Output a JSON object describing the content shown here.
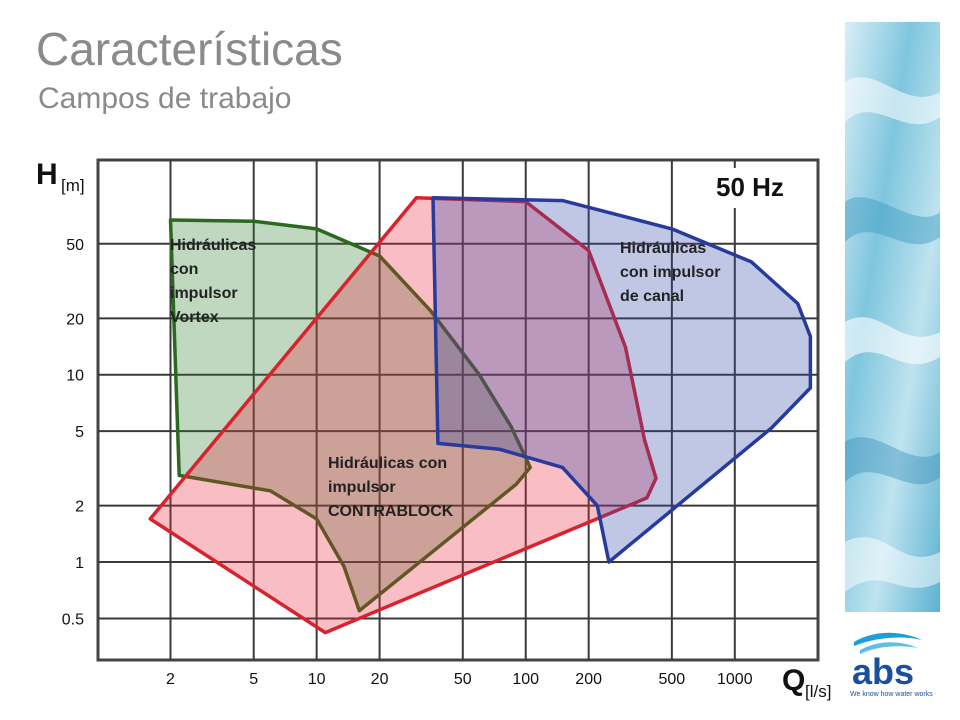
{
  "slide": {
    "title": "Características",
    "subtitle": "Campos de trabajo"
  },
  "chart_data": {
    "type": "area",
    "frequency_label": "50 Hz",
    "y_axis": {
      "symbol": "H",
      "unit": "[m]",
      "scale": "log",
      "range": [
        0.3,
        140
      ],
      "ticks": [
        "50",
        "20",
        "10",
        "5",
        "2",
        "1",
        "0.5"
      ],
      "tick_values": [
        50,
        20,
        10,
        5,
        2,
        1,
        0.5
      ]
    },
    "x_axis": {
      "symbol": "Q",
      "unit": "[l/s]",
      "scale": "log",
      "range": [
        0.9,
        2500
      ],
      "ticks": [
        "2",
        "5",
        "10",
        "20",
        "50",
        "100",
        "200",
        "500",
        "1000"
      ],
      "tick_values": [
        2,
        5,
        10,
        20,
        50,
        100,
        200,
        500,
        1000
      ]
    },
    "grid": true,
    "series": [
      {
        "name": "Hidráulicas con impulsor Vortex",
        "label_lines": [
          "Hidráulicas",
          "con",
          "impulsor",
          "Vortex"
        ],
        "fill": "#2e7a2e",
        "stroke": "#2a6a1e",
        "points": [
          [
            2.0,
            67
          ],
          [
            5.0,
            66
          ],
          [
            10.0,
            60
          ],
          [
            20.0,
            43
          ],
          [
            35.0,
            22
          ],
          [
            60.0,
            10
          ],
          [
            85.0,
            5.3
          ],
          [
            105.0,
            3.2
          ],
          [
            90.0,
            2.6
          ],
          [
            16.0,
            0.55
          ],
          [
            13.5,
            0.95
          ],
          [
            10.0,
            1.7
          ],
          [
            6.0,
            2.4
          ],
          [
            2.2,
            2.9
          ]
        ]
      },
      {
        "name": "Hidráulicas con impulsor CONTRABLOCK",
        "label_lines": [
          "Hidráulicas con",
          "impulsor",
          "CONTRABLOCK"
        ],
        "fill": "#e8283c",
        "stroke": "#d8232f",
        "points": [
          [
            1.6,
            1.7
          ],
          [
            30.0,
            88
          ],
          [
            100.0,
            84
          ],
          [
            200.0,
            46
          ],
          [
            300.0,
            14
          ],
          [
            370.0,
            4.5
          ],
          [
            420.0,
            2.8
          ],
          [
            380.0,
            2.2
          ],
          [
            11.0,
            0.42
          ]
        ]
      },
      {
        "name": "Hidráulicas con impulsor de canal",
        "label_lines": [
          "Hidráulicas",
          "con impulsor",
          "de canal"
        ],
        "fill": "#2f44a8",
        "stroke": "#283a9c",
        "points": [
          [
            36.0,
            88
          ],
          [
            150.0,
            85
          ],
          [
            500.0,
            60
          ],
          [
            1200.0,
            40
          ],
          [
            2000.0,
            24
          ],
          [
            2300.0,
            16
          ],
          [
            2300.0,
            8.5
          ],
          [
            1500.0,
            5.2
          ],
          [
            250.0,
            1.0
          ],
          [
            220.0,
            2.0
          ],
          [
            150.0,
            3.2
          ],
          [
            75.0,
            4.0
          ],
          [
            38.0,
            4.3
          ]
        ]
      }
    ]
  },
  "branding": {
    "logo_text": "abs",
    "tagline": "We know how water works"
  }
}
